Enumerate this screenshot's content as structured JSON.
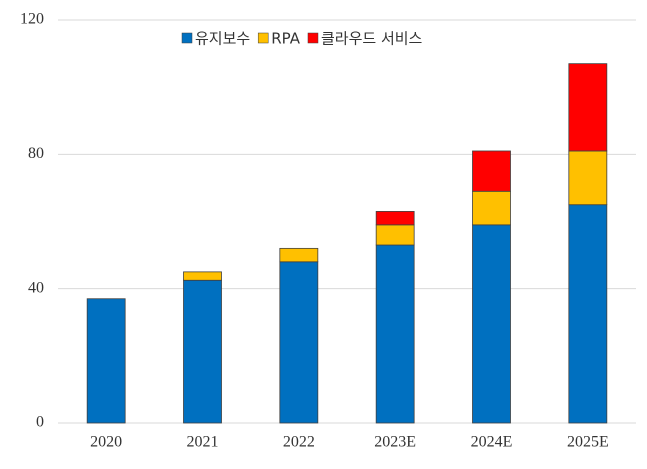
{
  "chart_data": {
    "type": "stacked_bar",
    "categories": [
      "2020",
      "2021",
      "2022",
      "2023E",
      "2024E",
      "2025E"
    ],
    "series": [
      {
        "name": "유지보수",
        "color": "#0070c0",
        "values": [
          37,
          42.5,
          48,
          53,
          59,
          65
        ]
      },
      {
        "name": "RPA",
        "color": "#ffc000",
        "values": [
          null,
          2.5,
          4,
          6,
          10,
          16
        ]
      },
      {
        "name": "클라우드 서비스",
        "color": "#ff0000",
        "values": [
          null,
          null,
          null,
          4,
          12,
          26
        ]
      }
    ],
    "ylim": [
      0,
      120
    ],
    "yticks": [
      0,
      40,
      80,
      120
    ],
    "grid": true,
    "legend": "top"
  }
}
